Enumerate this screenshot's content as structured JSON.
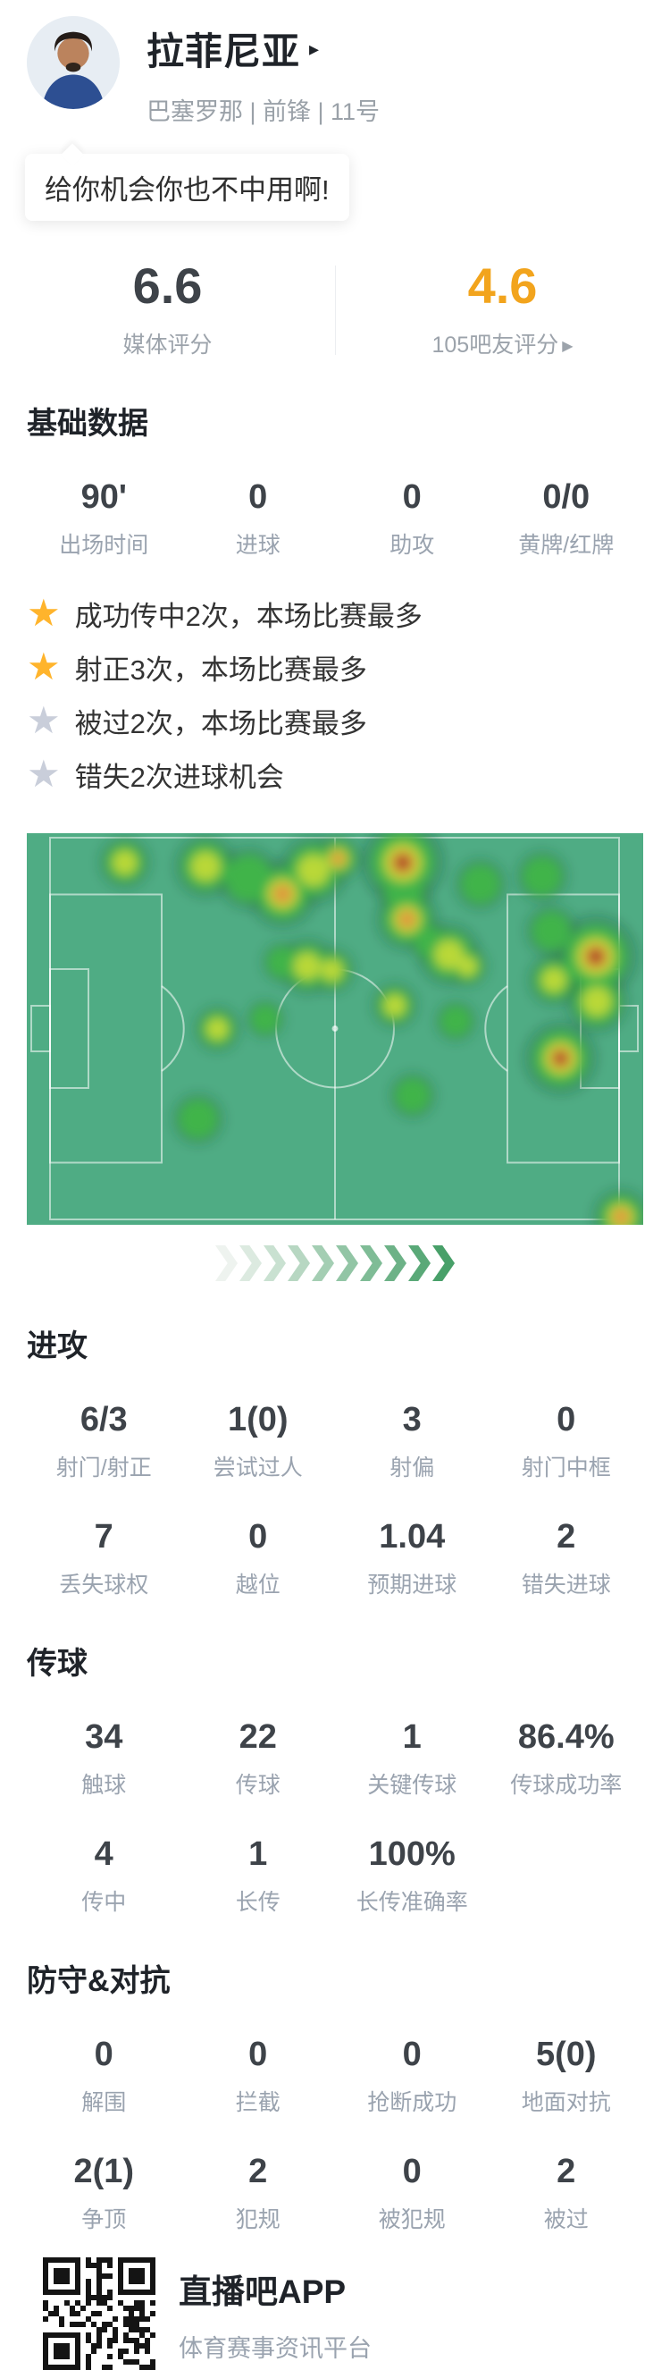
{
  "header": {
    "name": "拉菲尼亚",
    "name_arrow": "▸",
    "team_line": "巴塞罗那 | 前锋 | 11号"
  },
  "quote": {
    "text": "给你机会你也不中用啊!"
  },
  "ratings": {
    "media": {
      "value": "6.6",
      "label": "媒体评分"
    },
    "fans": {
      "value": "4.6",
      "label": "105吧友评分",
      "arrow": "▶"
    }
  },
  "basic": {
    "heading": "基础数据",
    "rows": [
      [
        {
          "value": "90'",
          "label": "出场时间"
        },
        {
          "value": "0",
          "label": "进球"
        },
        {
          "value": "0",
          "label": "助攻"
        },
        {
          "value": "0/0",
          "label": "黄牌/红牌"
        }
      ]
    ]
  },
  "highlights": [
    {
      "star": "gold",
      "text": "成功传中2次，本场比赛最多"
    },
    {
      "star": "gold",
      "text": "射正3次，本场比赛最多"
    },
    {
      "star": "gray",
      "text": "被过2次，本场比赛最多"
    },
    {
      "star": "gray",
      "text": "错失2次进球机会"
    }
  ],
  "sections": [
    {
      "heading": "进攻",
      "rows": [
        [
          {
            "value": "6/3",
            "label": "射门/射正"
          },
          {
            "value": "1(0)",
            "label": "尝试过人"
          },
          {
            "value": "3",
            "label": "射偏"
          },
          {
            "value": "0",
            "label": "射门中框"
          }
        ],
        [
          {
            "value": "7",
            "label": "丢失球权"
          },
          {
            "value": "0",
            "label": "越位"
          },
          {
            "value": "1.04",
            "label": "预期进球"
          },
          {
            "value": "2",
            "label": "错失进球"
          }
        ]
      ]
    },
    {
      "heading": "传球",
      "rows": [
        [
          {
            "value": "34",
            "label": "触球"
          },
          {
            "value": "22",
            "label": "传球"
          },
          {
            "value": "1",
            "label": "关键传球"
          },
          {
            "value": "86.4%",
            "label": "传球成功率"
          }
        ],
        [
          {
            "value": "4",
            "label": "传中"
          },
          {
            "value": "1",
            "label": "长传"
          },
          {
            "value": "100%",
            "label": "长传准确率"
          },
          null
        ]
      ]
    },
    {
      "heading": "防守&对抗",
      "rows": [
        [
          {
            "value": "0",
            "label": "解围"
          },
          {
            "value": "0",
            "label": "拦截"
          },
          {
            "value": "0",
            "label": "抢断成功"
          },
          {
            "value": "5(0)",
            "label": "地面对抗"
          }
        ],
        [
          {
            "value": "2(1)",
            "label": "争顶"
          },
          {
            "value": "2",
            "label": "犯规"
          },
          {
            "value": "0",
            "label": "被犯规"
          },
          {
            "value": "2",
            "label": "被过"
          }
        ]
      ]
    }
  ],
  "footer": {
    "app_name": "直播吧APP",
    "tagline": "体育赛事资讯平台"
  },
  "colors": {
    "rating_gold": "#f2a41d",
    "star_gold": "#ffb42c",
    "star_gray": "#c9ceda",
    "number_dark": "#3e4349",
    "label_gray": "#9aa3af",
    "chevron_from": "#eef3ef",
    "chevron_to": "#48a069"
  },
  "chart_data": {
    "type": "heatmap",
    "subject": "player-position-heatmap",
    "attack_direction": "right",
    "pitch_color": "#4fac84",
    "line_color": "rgba(255,255,255,0.55)",
    "intensity_colors": {
      "1": "#3fb44a",
      "2": "#b9d838",
      "3": "#de9a3c",
      "4": "#a63a20"
    },
    "x_range": [
      0,
      1
    ],
    "y_range": [
      0,
      1
    ],
    "spots": [
      {
        "x": 0.159,
        "y": 0.075,
        "r": 20,
        "intensity": 2
      },
      {
        "x": 0.29,
        "y": 0.085,
        "r": 24,
        "intensity": 2
      },
      {
        "x": 0.36,
        "y": 0.115,
        "r": 24,
        "intensity": 1
      },
      {
        "x": 0.415,
        "y": 0.155,
        "r": 26,
        "intensity": 3
      },
      {
        "x": 0.465,
        "y": 0.095,
        "r": 26,
        "intensity": 2
      },
      {
        "x": 0.505,
        "y": 0.065,
        "r": 18,
        "intensity": 3
      },
      {
        "x": 0.61,
        "y": 0.075,
        "r": 32,
        "intensity": 4
      },
      {
        "x": 0.612,
        "y": 0.15,
        "r": 20,
        "intensity": 1
      },
      {
        "x": 0.617,
        "y": 0.22,
        "r": 24,
        "intensity": 3
      },
      {
        "x": 0.736,
        "y": 0.13,
        "r": 20,
        "intensity": 1
      },
      {
        "x": 0.836,
        "y": 0.11,
        "r": 20,
        "intensity": 1
      },
      {
        "x": 0.685,
        "y": 0.31,
        "r": 24,
        "intensity": 2
      },
      {
        "x": 0.655,
        "y": 0.28,
        "r": 16,
        "intensity": 1
      },
      {
        "x": 0.715,
        "y": 0.34,
        "r": 16,
        "intensity": 2
      },
      {
        "x": 0.851,
        "y": 0.25,
        "r": 20,
        "intensity": 1
      },
      {
        "x": 0.923,
        "y": 0.315,
        "r": 32,
        "intensity": 4
      },
      {
        "x": 0.925,
        "y": 0.43,
        "r": 24,
        "intensity": 2
      },
      {
        "x": 0.855,
        "y": 0.375,
        "r": 20,
        "intensity": 2
      },
      {
        "x": 0.455,
        "y": 0.34,
        "r": 22,
        "intensity": 2
      },
      {
        "x": 0.495,
        "y": 0.35,
        "r": 18,
        "intensity": 2
      },
      {
        "x": 0.415,
        "y": 0.33,
        "r": 16,
        "intensity": 1
      },
      {
        "x": 0.597,
        "y": 0.44,
        "r": 18,
        "intensity": 2
      },
      {
        "x": 0.696,
        "y": 0.48,
        "r": 16,
        "intensity": 1
      },
      {
        "x": 0.309,
        "y": 0.5,
        "r": 18,
        "intensity": 2
      },
      {
        "x": 0.387,
        "y": 0.475,
        "r": 15,
        "intensity": 1
      },
      {
        "x": 0.866,
        "y": 0.575,
        "r": 28,
        "intensity": 4
      },
      {
        "x": 0.626,
        "y": 0.67,
        "r": 18,
        "intensity": 1
      },
      {
        "x": 0.278,
        "y": 0.73,
        "r": 20,
        "intensity": 1
      },
      {
        "x": 0.964,
        "y": 0.98,
        "r": 22,
        "intensity": 3
      }
    ]
  }
}
